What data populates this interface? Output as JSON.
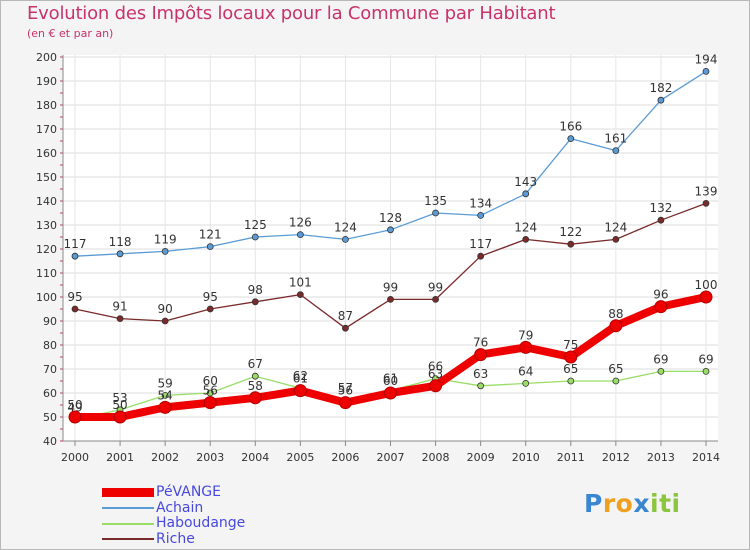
{
  "chart_data": {
    "type": "line",
    "title": "Evolution des Impôts locaux pour la Commune par Habitant",
    "subtitle": "(en € et par an)",
    "xlabel": "",
    "ylabel": "",
    "x": [
      2000,
      2001,
      2002,
      2003,
      2004,
      2005,
      2006,
      2007,
      2008,
      2009,
      2010,
      2011,
      2012,
      2013,
      2014
    ],
    "ylim": [
      40,
      200
    ],
    "yticks": [
      40,
      50,
      60,
      70,
      80,
      90,
      100,
      110,
      120,
      130,
      140,
      150,
      160,
      170,
      180,
      190,
      200
    ],
    "grid": true,
    "legend_position": "bottom-left",
    "series": [
      {
        "name": "Achain",
        "color": "#5a9bd5",
        "values": [
          117,
          118,
          119,
          121,
          125,
          126,
          124,
          128,
          135,
          134,
          143,
          166,
          161,
          182,
          194
        ],
        "labels": [
          "117",
          "118",
          "119",
          "121",
          "125",
          "126",
          "124",
          "128",
          "135",
          "134",
          "143",
          "166",
          "161",
          "182",
          "194"
        ]
      },
      {
        "name": "Riche",
        "color": "#7a2a2a",
        "values": [
          95,
          91,
          90,
          95,
          98,
          101,
          87,
          99,
          99,
          117,
          124,
          122,
          124,
          132,
          139
        ],
        "labels": [
          "95",
          "91",
          "90",
          "95",
          "98",
          "101",
          "87",
          "99",
          "99",
          "117",
          "124",
          "122",
          "124",
          "132",
          "139"
        ]
      },
      {
        "name": "Haboudange",
        "color": "#99dd66",
        "values": [
          49,
          53,
          59,
          60,
          67,
          62,
          57,
          61,
          66,
          63,
          64,
          65,
          65,
          69,
          69
        ],
        "labels": [
          "49",
          "53",
          "59",
          "60",
          "67",
          "62",
          "57",
          "61",
          "66",
          "63",
          "64",
          "65",
          "65",
          "69",
          "69"
        ]
      },
      {
        "name": "PéVANGE",
        "color": "#ee0000",
        "values": [
          50,
          50,
          54,
          56,
          58,
          61,
          56,
          60,
          63,
          76,
          79,
          75,
          88,
          96,
          100
        ],
        "labels": [
          "50",
          "50",
          "54",
          "56",
          "58",
          "61",
          "56",
          "60",
          "63",
          "76",
          "79",
          "75",
          "88",
          "96",
          "100"
        ]
      }
    ],
    "legend_order": [
      "PéVANGE",
      "Achain",
      "Haboudange",
      "Riche"
    ]
  },
  "brand": {
    "letters": [
      "P",
      "r",
      "o",
      "x",
      "i",
      "t",
      "i"
    ],
    "colors": [
      "#3a86d0",
      "#f0a020",
      "#f0a020",
      "#3a86d0",
      "#8cc63f",
      "#8cc63f",
      "#8cc63f"
    ]
  }
}
